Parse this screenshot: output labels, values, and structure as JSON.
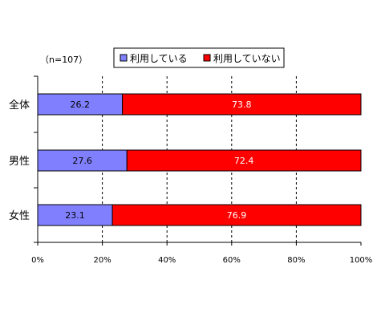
{
  "chart_data": {
    "type": "bar",
    "orientation": "horizontal",
    "stacked": true,
    "note": "（n=107）",
    "categories": [
      "全体",
      "男性",
      "女性"
    ],
    "series": [
      {
        "name": "利用している",
        "color": "#8080ff",
        "values": [
          26.2,
          27.6,
          23.1
        ]
      },
      {
        "name": "利用していない",
        "color": "#ff0000",
        "values": [
          73.8,
          72.4,
          76.9
        ]
      }
    ],
    "x_ticks": [
      "0%",
      "20%",
      "40%",
      "60%",
      "80%",
      "100%"
    ],
    "xlim": [
      0,
      100
    ],
    "grid": "vertical dashed",
    "legend_position": "top"
  }
}
